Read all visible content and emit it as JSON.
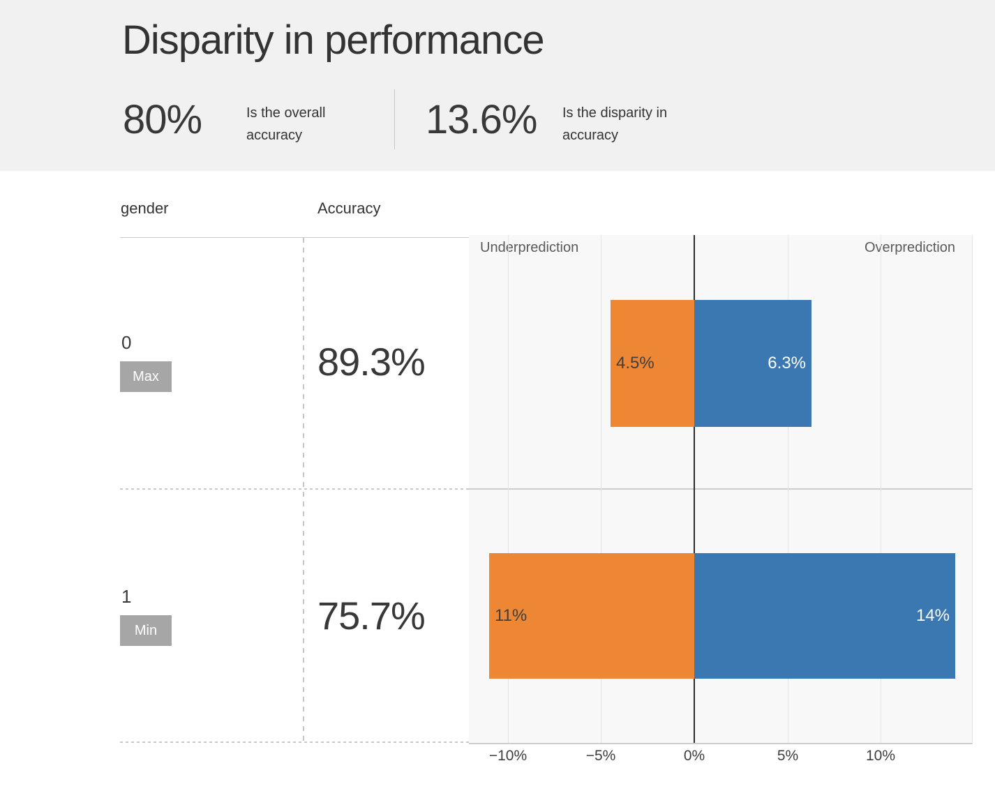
{
  "header": {
    "title": "Disparity in performance",
    "stats": [
      {
        "value": "80%",
        "label": "Is the overall accuracy"
      },
      {
        "value": "13.6%",
        "label": "Is the disparity in accuracy"
      }
    ]
  },
  "table": {
    "columns": [
      "gender",
      "Accuracy"
    ],
    "rows": [
      {
        "group": "0",
        "badge": "Max",
        "accuracy": "89.3%"
      },
      {
        "group": "1",
        "badge": "Min",
        "accuracy": "75.7%"
      }
    ]
  },
  "chart": {
    "left_label": "Underprediction",
    "right_label": "Overprediction"
  },
  "chart_data": {
    "type": "bar",
    "orientation": "horizontal_diverging",
    "title": "Disparity in performance",
    "categories": [
      "0",
      "1"
    ],
    "category_accuracy": [
      "89.3%",
      "75.7%"
    ],
    "series": [
      {
        "name": "Underprediction",
        "values": [
          -4.5,
          -11
        ],
        "labels": [
          "4.5%",
          "11%"
        ],
        "color": "#ed8733",
        "label_color": "#3f3f3f"
      },
      {
        "name": "Overprediction",
        "values": [
          6.3,
          14
        ],
        "labels": [
          "6.3%",
          "14%"
        ],
        "color": "#3b77b1",
        "label_color": "#ffffff"
      }
    ],
    "x_ticks": [
      -10,
      -5,
      0,
      5,
      10
    ],
    "x_tick_labels": [
      "−10%",
      "−5%",
      "0%",
      "5%",
      "10%"
    ],
    "xlim": [
      -12.1,
      14.9
    ],
    "grid": true,
    "legend_position": "none"
  },
  "colors": {
    "header_bg": "#f1f1f1",
    "chart_bg": "#f8f8f8",
    "underprediction": "#ed8733",
    "overprediction": "#3b77b1",
    "badge_bg": "#a6a6a6",
    "zero_line": "#2b2b2b"
  }
}
